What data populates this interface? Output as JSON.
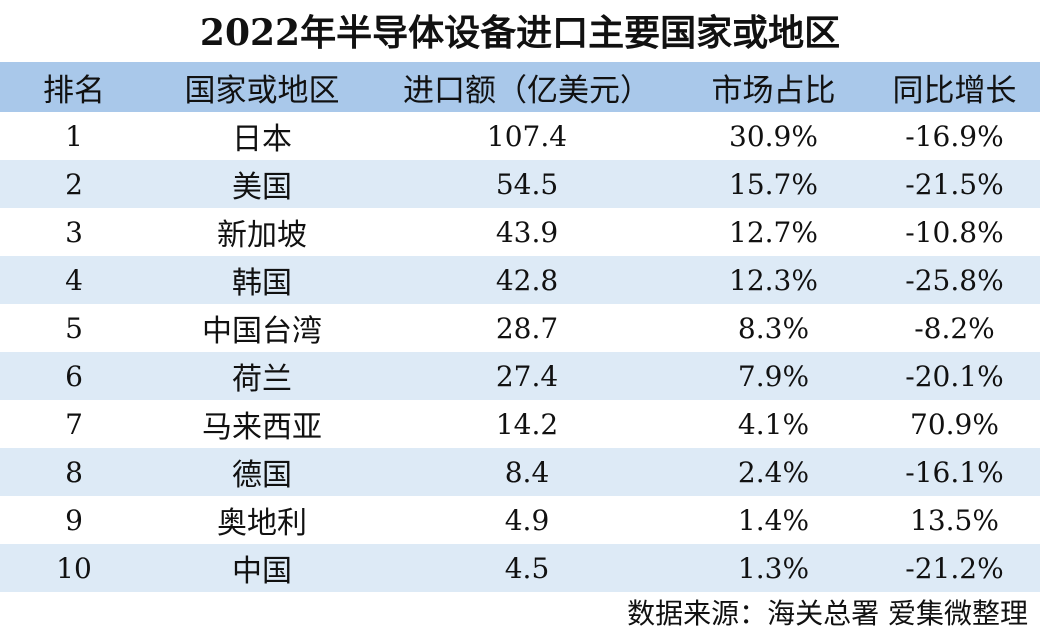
{
  "chart_data": {
    "type": "table",
    "title": "2022年半导体设备进口主要国家或地区",
    "columns": [
      "排名",
      "国家或地区",
      "进口额（亿美元）",
      "市场占比",
      "同比增长"
    ],
    "rows": [
      [
        "1",
        "日本",
        "107.4",
        "30.9%",
        "-16.9%"
      ],
      [
        "2",
        "美国",
        "54.5",
        "15.7%",
        "-21.5%"
      ],
      [
        "3",
        "新加坡",
        "43.9",
        "12.7%",
        "-10.8%"
      ],
      [
        "4",
        "韩国",
        "42.8",
        "12.3%",
        "-25.8%"
      ],
      [
        "5",
        "中国台湾",
        "28.7",
        "8.3%",
        "-8.2%"
      ],
      [
        "6",
        "荷兰",
        "27.4",
        "7.9%",
        "-20.1%"
      ],
      [
        "7",
        "马来西亚",
        "14.2",
        "4.1%",
        "70.9%"
      ],
      [
        "8",
        "德国",
        "8.4",
        "2.4%",
        "-16.1%"
      ],
      [
        "9",
        "奥地利",
        "4.9",
        "1.4%",
        "13.5%"
      ],
      [
        "10",
        "中国",
        "4.5",
        "1.3%",
        "-21.2%"
      ]
    ],
    "source": "数据来源：海关总署  爱集微整理"
  },
  "colors": {
    "header_bg": "#a9c8ea",
    "stripe_bg": "#ddeaf6",
    "plain_bg": "#ffffff"
  }
}
